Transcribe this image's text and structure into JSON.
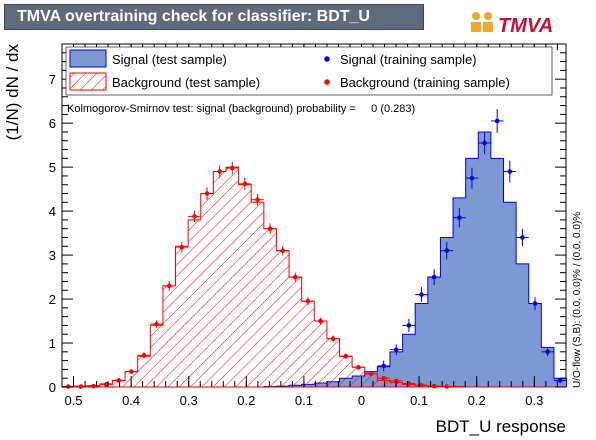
{
  "title": "TMVA overtraining check for classifier: BDT_U",
  "logo_text": "TMVA",
  "chart_data": {
    "type": "histogram",
    "xlabel": "BDT_U response",
    "ylabel": "(1/N) dN / dx",
    "xlim": [
      -0.52,
      0.355
    ],
    "ylim": [
      0,
      7.8
    ],
    "x_ticks": [
      -0.5,
      -0.4,
      -0.3,
      -0.2,
      -0.1,
      0,
      0.1,
      0.2,
      0.3
    ],
    "x_tick_labels": [
      "0.5",
      "0.4",
      "0.3",
      "0.2",
      "0.1",
      "0",
      "0.1",
      "0.2",
      "0.3"
    ],
    "y_ticks": [
      0,
      1,
      2,
      3,
      4,
      5,
      6,
      7
    ],
    "ks_text": "Kolmogorov-Smirnov test: signal (background) probability =     0 (0.283)",
    "overflow_text": "U/O-flow (S,B): (0.0, 0.0)% / (0.0, 0.0)%",
    "legend": [
      {
        "label": "Signal (test sample)",
        "style": "signal-fill"
      },
      {
        "label": "Signal (training sample)",
        "style": "signal-point"
      },
      {
        "label": "Background (test sample)",
        "style": "background-hatch"
      },
      {
        "label": "Background (training sample)",
        "style": "background-point"
      }
    ],
    "bins": {
      "start": -0.52,
      "width": 0.0219,
      "count": 40
    },
    "series": [
      {
        "name": "Signal (test sample)",
        "values": [
          0,
          0,
          0,
          0,
          0,
          0,
          0,
          0,
          0,
          0,
          0,
          0,
          0,
          0,
          0,
          0,
          0.01,
          0.02,
          0.04,
          0.06,
          0.09,
          0.12,
          0.2,
          0.25,
          0.35,
          0.46,
          0.8,
          1.2,
          1.9,
          2.5,
          3.4,
          4.3,
          5.2,
          5.8,
          5.2,
          4.2,
          2.8,
          1.9,
          0.9,
          0.2
        ]
      },
      {
        "name": "Background (test sample)",
        "values": [
          0.01,
          0.02,
          0.03,
          0.07,
          0.15,
          0.35,
          0.7,
          1.4,
          2.3,
          3.2,
          3.8,
          4.4,
          4.9,
          5.0,
          4.6,
          4.2,
          3.6,
          3.1,
          2.5,
          1.95,
          1.5,
          1.1,
          0.7,
          0.45,
          0.3,
          0.15,
          0.1,
          0.06,
          0.04,
          0.02,
          0.01,
          0.01,
          0,
          0,
          0,
          0,
          0,
          0,
          0,
          0
        ]
      },
      {
        "name": "Signal (training sample)",
        "values": [
          0,
          0,
          0,
          0,
          0,
          0,
          0,
          0,
          0,
          0,
          0,
          0,
          0,
          0,
          0,
          0,
          0,
          0,
          0,
          0,
          0,
          0,
          0,
          0,
          0,
          0.48,
          0.85,
          1.4,
          2.1,
          2.5,
          3.1,
          3.85,
          4.75,
          5.55,
          6.05,
          4.9,
          3.4,
          1.9,
          0.8,
          0.15
        ],
        "errors": [
          0,
          0,
          0,
          0,
          0,
          0,
          0,
          0,
          0,
          0,
          0,
          0,
          0,
          0,
          0,
          0,
          0,
          0,
          0,
          0,
          0,
          0,
          0,
          0,
          0,
          0.12,
          0.12,
          0.15,
          0.17,
          0.18,
          0.2,
          0.22,
          0.24,
          0.25,
          0.27,
          0.25,
          0.2,
          0.15,
          0.1,
          0.05
        ]
      },
      {
        "name": "Background (training sample)",
        "values": [
          0.01,
          0.01,
          0.02,
          0.06,
          0.15,
          0.35,
          0.72,
          1.43,
          2.3,
          3.18,
          3.88,
          4.4,
          4.9,
          4.98,
          4.62,
          4.26,
          3.6,
          3.1,
          2.5,
          1.95,
          1.5,
          1.1,
          0.7,
          0.45,
          0.3,
          0.2,
          0.14,
          0.08,
          0.04,
          0.02,
          0.01,
          0,
          0,
          0,
          0,
          0,
          0,
          0,
          0,
          0
        ],
        "errors": [
          0.01,
          0.01,
          0.01,
          0.02,
          0.03,
          0.05,
          0.07,
          0.09,
          0.11,
          0.12,
          0.13,
          0.14,
          0.14,
          0.14,
          0.14,
          0.13,
          0.12,
          0.11,
          0.1,
          0.09,
          0.08,
          0.07,
          0.06,
          0.05,
          0.04,
          0.03,
          0.03,
          0.02,
          0.02,
          0.01,
          0.01,
          0,
          0,
          0,
          0,
          0,
          0,
          0,
          0,
          0
        ]
      }
    ],
    "colors": {
      "signal_fill": "#7d99d1",
      "signal_line": "#0000ee",
      "background_line": "#ff0000",
      "signal_point": "#0000ee",
      "background_point": "#ff0000"
    }
  }
}
